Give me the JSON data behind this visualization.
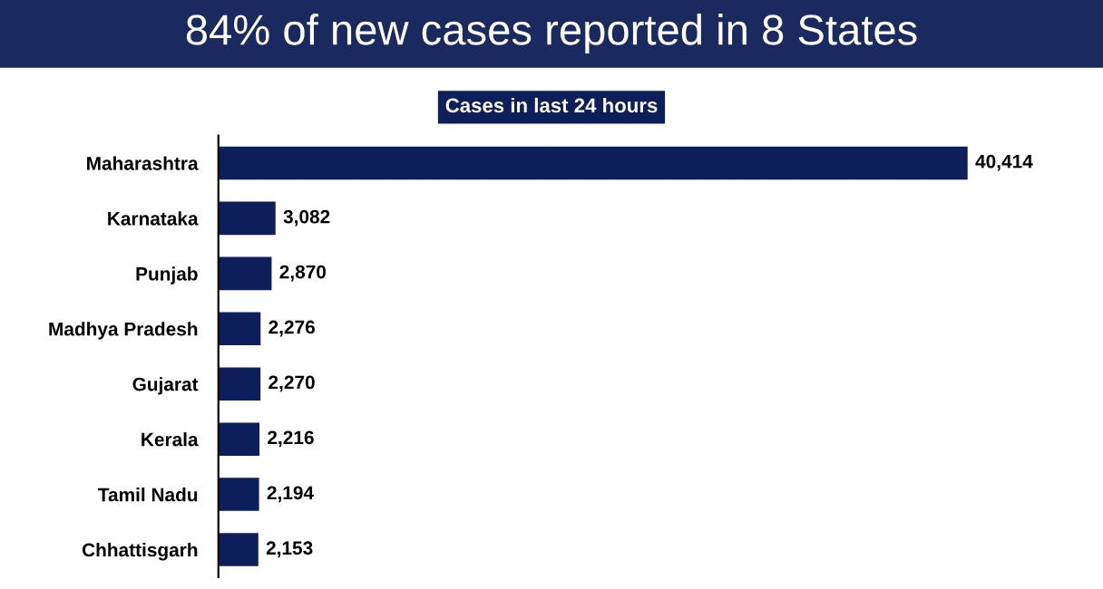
{
  "chart_data": {
    "type": "bar",
    "orientation": "horizontal",
    "title": "84% of new cases reported in 8 States",
    "subtitle": "Cases in last 24 hours",
    "categories": [
      "Maharashtra",
      "Karnataka",
      "Punjab",
      "Madhya Pradesh",
      "Gujarat",
      "Kerala",
      "Tamil Nadu",
      "Chhattisgarh"
    ],
    "values": [
      40414,
      3082,
      2870,
      2276,
      2270,
      2216,
      2194,
      2153
    ],
    "value_labels": [
      "40,414",
      "3,082",
      "2,870",
      "2,276",
      "2,270",
      "2,216",
      "2,194",
      "2,153"
    ],
    "color": "#0c1f5a",
    "grid": false,
    "legend": false
  }
}
